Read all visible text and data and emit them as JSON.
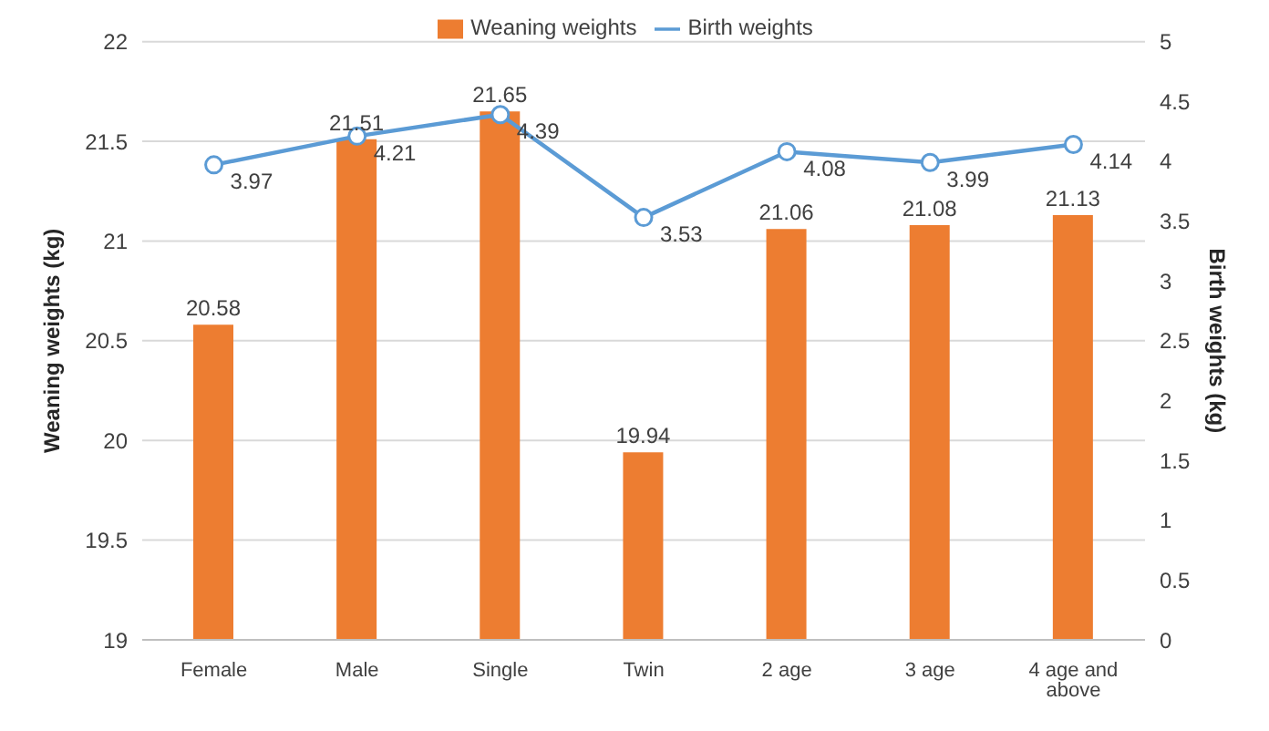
{
  "chart_data": {
    "type": "bar",
    "categories": [
      "Female",
      "Male",
      "Single",
      "Twin",
      "2 age",
      "3 age",
      "4 age and above"
    ],
    "series": [
      {
        "name": "Weaning weights",
        "color": "#ed7d31",
        "values": [
          20.58,
          21.51,
          21.65,
          19.94,
          21.06,
          21.08,
          21.13
        ]
      },
      {
        "name": "Birth weights",
        "type": "line",
        "axis": "y2",
        "color": "#5b9bd5",
        "values": [
          3.97,
          4.21,
          4.39,
          3.53,
          4.08,
          3.99,
          4.14
        ]
      }
    ],
    "ylabel": "Weaning weights (kg)",
    "y2label": "Birth weights (kg)",
    "ylim": [
      19,
      22
    ],
    "yticks": [
      19,
      19.5,
      20,
      20.5,
      21,
      21.5,
      22
    ],
    "y2lim": [
      0,
      5
    ],
    "y2ticks": [
      0,
      0.5,
      1,
      1.5,
      2,
      2.5,
      3,
      3.5,
      4,
      4.5,
      5
    ],
    "grid": "y",
    "legend": "top",
    "data_labels": true,
    "marker": "circle",
    "line_style": "solid"
  }
}
